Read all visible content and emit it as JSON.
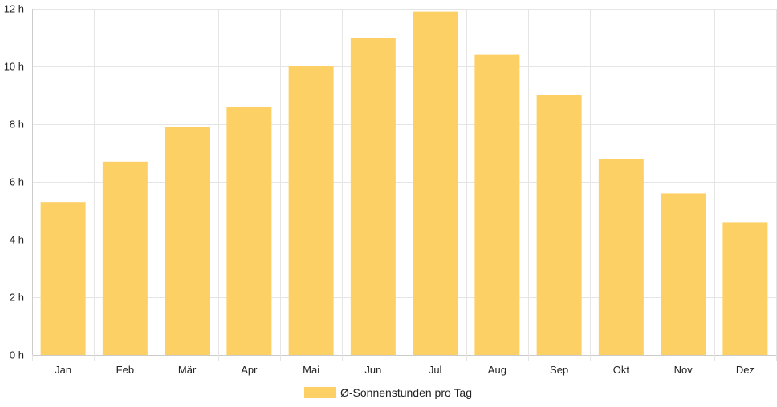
{
  "chart_data": {
    "type": "bar",
    "categories": [
      "Jan",
      "Feb",
      "Mär",
      "Apr",
      "Mai",
      "Jun",
      "Jul",
      "Aug",
      "Sep",
      "Okt",
      "Nov",
      "Dez"
    ],
    "series": [
      {
        "name": "Ø-Sonnenstunden pro Tag",
        "values": [
          5.3,
          6.7,
          7.9,
          8.6,
          10.0,
          11.0,
          11.9,
          10.4,
          9.0,
          6.8,
          5.6,
          4.6
        ],
        "color": "#fdd066"
      }
    ],
    "ylim": [
      0,
      12
    ],
    "yticks": [
      0,
      2,
      4,
      6,
      8,
      10,
      12
    ],
    "ytick_unit": "h",
    "grid": true,
    "legend_position": "bottom",
    "colors": {
      "bar": "#fdd066",
      "grid": "#e5e5e5",
      "axis": "#cccccc",
      "text": "#222222"
    }
  }
}
